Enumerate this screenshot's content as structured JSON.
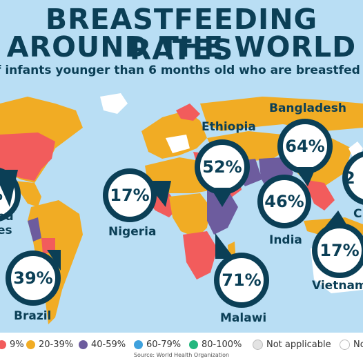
{
  "title_line1": "BREASTFEEDING RATES",
  "title_line2": "AROUND THE WORLD",
  "subtitle": "f infants younger than 6 months old who are breastfed exclusiv",
  "colors": {
    "background": "#b9def4",
    "title": "#0b3f56",
    "red": "#f25c5c",
    "orange": "#f1ac24",
    "purple": "#6d5c9e",
    "blue": "#3fa1dd",
    "green": "#23b77e",
    "na": "#e3e3e3",
    "nodata": "#ffffff"
  },
  "pins": [
    {
      "country": "ed\nes",
      "value": "%"
    },
    {
      "country": "Brazil",
      "value": "39%"
    },
    {
      "country": "Nigeria",
      "value": "17%"
    },
    {
      "country": "Ethiopia",
      "value": "52%"
    },
    {
      "country": "Malawi",
      "value": "71%"
    },
    {
      "country": "Bangladesh",
      "value": "64%"
    },
    {
      "country": "India",
      "value": "46%"
    },
    {
      "country": "Vietnam",
      "value": "17%"
    },
    {
      "country": "C",
      "value": "2"
    }
  ],
  "legend": [
    {
      "label": "9%",
      "color": "#f25c5c"
    },
    {
      "label": "20-39%",
      "color": "#f1ac24"
    },
    {
      "label": "40-59%",
      "color": "#6d5c9e"
    },
    {
      "label": "60-79%",
      "color": "#3fa1dd"
    },
    {
      "label": "80-100%",
      "color": "#23b77e"
    },
    {
      "label": "Not applicable",
      "color": "#e3e3e3"
    },
    {
      "label": "No",
      "color": "#ffffff"
    }
  ],
  "source": "Source: World Health Organization"
}
